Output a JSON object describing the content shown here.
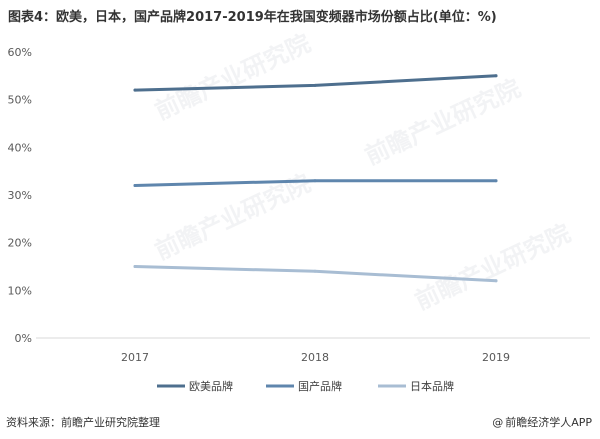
{
  "title": "图表4：欧美，日本，国产品牌2017-2019年在我国变频器市场份额占比(单位：%)",
  "footer": {
    "source": "资料来源：前瞻产业研究院整理",
    "brand_symbol": "@",
    "brand": "前瞻经济学人APP"
  },
  "watermark": "前瞻产业研究院",
  "chart_data": {
    "type": "line",
    "x": [
      "2017",
      "2018",
      "2019"
    ],
    "ylim": [
      0,
      60
    ],
    "yticks": [
      0,
      10,
      20,
      30,
      40,
      50,
      60
    ],
    "ytick_labels": [
      "0%",
      "10%",
      "20%",
      "30%",
      "40%",
      "50%",
      "60%"
    ],
    "grid": false,
    "legend_position": "bottom",
    "series": [
      {
        "name": "欧美品牌",
        "values": [
          52,
          53,
          55
        ],
        "color": "#4e6f8e"
      },
      {
        "name": "国产品牌",
        "values": [
          32,
          33,
          33
        ],
        "color": "#5f86ad"
      },
      {
        "name": "日本品牌",
        "values": [
          15,
          14,
          12
        ],
        "color": "#a8bdd3"
      }
    ]
  }
}
